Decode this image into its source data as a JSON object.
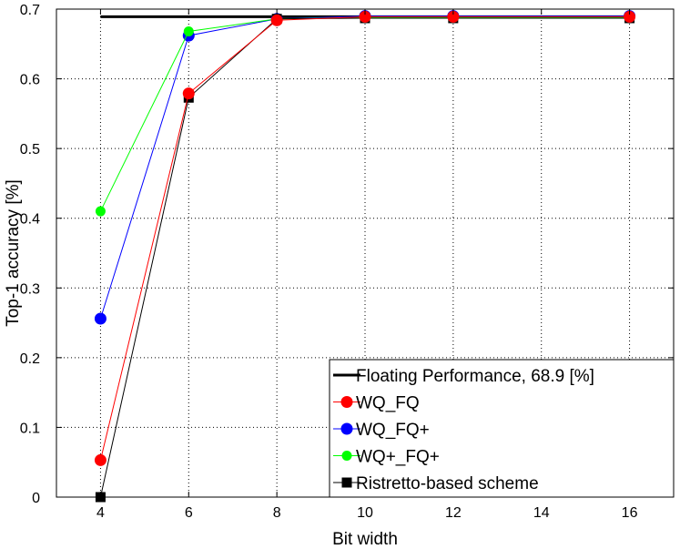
{
  "chart_data": {
    "type": "line",
    "title": "",
    "xlabel": "Bit width",
    "ylabel": "Top-1 accuracy [%]",
    "xlim": [
      3,
      17
    ],
    "ylim": [
      0,
      0.7
    ],
    "x_ticks": [
      4,
      6,
      8,
      10,
      12,
      14,
      16
    ],
    "y_ticks": [
      0,
      0.1,
      0.2,
      0.3,
      0.4,
      0.5,
      0.6,
      0.7
    ],
    "grid": true,
    "legend_position": "bottom-right",
    "x": [
      4,
      6,
      8,
      10,
      12,
      16
    ],
    "reference_line": {
      "name": "Floating Performance, 68.9 [%]",
      "value": 0.689,
      "x_range": [
        4,
        16
      ],
      "color": "#000000"
    },
    "series": [
      {
        "name": "WQ_FQ+",
        "color": "#0000ff",
        "marker": "circle",
        "values": [
          0.256,
          0.662,
          0.686,
          0.69,
          0.69,
          0.69
        ]
      },
      {
        "name": "WQ+_FQ+",
        "color": "#00ff00",
        "marker": "circle-small",
        "values": [
          0.41,
          0.668,
          0.686,
          0.688,
          0.688,
          0.688
        ]
      },
      {
        "name": "Ristretto-based scheme",
        "color": "#000000",
        "marker": "square",
        "values": [
          0.0,
          0.573,
          0.686,
          0.687,
          0.687,
          0.687
        ]
      },
      {
        "name": "WQ_FQ",
        "color": "#ff0000",
        "marker": "circle",
        "values": [
          0.053,
          0.579,
          0.684,
          0.689,
          0.689,
          0.689
        ]
      }
    ],
    "legend_order": [
      "Floating Performance, 68.9 [%]",
      "WQ_FQ",
      "WQ_FQ+",
      "WQ+_FQ+",
      "Ristretto-based scheme"
    ]
  }
}
